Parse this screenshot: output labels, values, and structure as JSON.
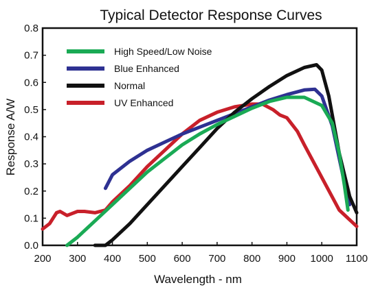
{
  "chart_data": {
    "type": "line",
    "title": "Typical Detector Response Curves",
    "xlabel": "Wavelength - nm",
    "ylabel": "Response A/W",
    "xlim": [
      200,
      1100
    ],
    "ylim": [
      0.0,
      0.8
    ],
    "xticks": [
      "200",
      "300",
      "400",
      "500",
      "600",
      "700",
      "800",
      "900",
      "1000",
      "1100"
    ],
    "yticks": [
      "0.0",
      "0.1",
      "0.2",
      "0.3",
      "0.4",
      "0.5",
      "0.6",
      "0.7",
      "0.8"
    ],
    "grid": false,
    "legend_position": "top-left",
    "series": [
      {
        "name": "High Speed/Low Noise",
        "color": "#1aaa55",
        "x": [
          270,
          300,
          350,
          400,
          450,
          500,
          550,
          600,
          650,
          700,
          750,
          800,
          850,
          900,
          950,
          1000,
          1030,
          1050,
          1065,
          1075
        ],
        "y": [
          0.0,
          0.03,
          0.09,
          0.15,
          0.21,
          0.27,
          0.32,
          0.37,
          0.41,
          0.445,
          0.475,
          0.505,
          0.53,
          0.545,
          0.545,
          0.515,
          0.45,
          0.34,
          0.22,
          0.13
        ]
      },
      {
        "name": "Blue Enhanced",
        "color": "#2e3192",
        "x": [
          380,
          400,
          450,
          500,
          550,
          600,
          650,
          700,
          750,
          800,
          850,
          900,
          950,
          980,
          1000,
          1030,
          1060,
          1080
        ],
        "y": [
          0.21,
          0.26,
          0.31,
          0.35,
          0.38,
          0.41,
          0.435,
          0.46,
          0.485,
          0.51,
          0.535,
          0.555,
          0.572,
          0.575,
          0.55,
          0.44,
          0.26,
          0.15
        ]
      },
      {
        "name": "Normal",
        "color": "#111111",
        "x": [
          350,
          380,
          400,
          450,
          500,
          550,
          600,
          650,
          700,
          750,
          800,
          850,
          900,
          950,
          985,
          1000,
          1020,
          1050,
          1080,
          1100
        ],
        "y": [
          0.0,
          0.0,
          0.02,
          0.08,
          0.15,
          0.22,
          0.29,
          0.36,
          0.43,
          0.49,
          0.54,
          0.585,
          0.625,
          0.655,
          0.665,
          0.645,
          0.55,
          0.34,
          0.18,
          0.12
        ]
      },
      {
        "name": "UV Enhanced",
        "color": "#c8202a",
        "x": [
          200,
          220,
          240,
          250,
          270,
          280,
          300,
          320,
          350,
          380,
          400,
          450,
          500,
          550,
          600,
          650,
          700,
          750,
          800,
          830,
          860,
          880,
          900,
          930,
          950,
          1000,
          1050,
          1100
        ],
        "y": [
          0.06,
          0.08,
          0.12,
          0.125,
          0.11,
          0.115,
          0.125,
          0.125,
          0.12,
          0.13,
          0.16,
          0.22,
          0.29,
          0.35,
          0.41,
          0.46,
          0.49,
          0.51,
          0.52,
          0.52,
          0.5,
          0.48,
          0.47,
          0.42,
          0.37,
          0.25,
          0.13,
          0.07
        ]
      }
    ]
  }
}
